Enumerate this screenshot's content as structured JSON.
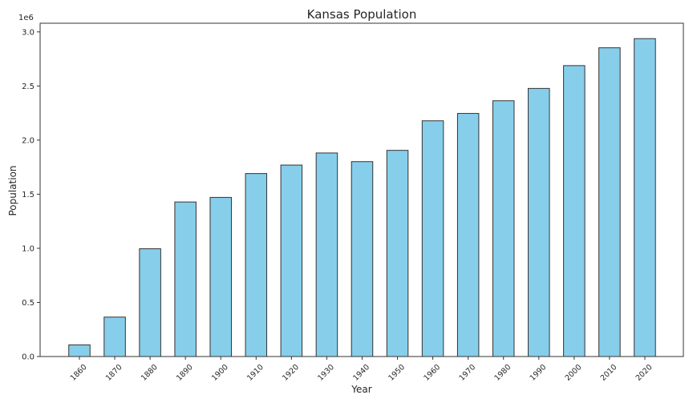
{
  "chart_data": {
    "type": "bar",
    "title": "Kansas Population",
    "xlabel": "Year",
    "ylabel": "Population",
    "offset_label": "1e6",
    "categories": [
      "1860",
      "1870",
      "1880",
      "1890",
      "1900",
      "1910",
      "1920",
      "1930",
      "1940",
      "1950",
      "1960",
      "1970",
      "1980",
      "1990",
      "2000",
      "2010",
      "2020"
    ],
    "values": [
      107206,
      364399,
      996096,
      1428108,
      1470495,
      1690949,
      1769257,
      1880999,
      1801028,
      1905299,
      2178611,
      2246578,
      2363679,
      2477574,
      2688418,
      2853118,
      2937880
    ],
    "ylim": [
      0,
      3080000
    ],
    "yticks": [
      0.0,
      0.5,
      1.0,
      1.5,
      2.0,
      2.5,
      3.0
    ],
    "ytick_labels": [
      "0.0",
      "0.5",
      "1.0",
      "1.5",
      "2.0",
      "2.5",
      "3.0"
    ],
    "ytick_scale": 1000000,
    "grid": false,
    "colors": {
      "bar_fill": "#87CEEB",
      "bar_edge": "#333333",
      "axes": "#333333",
      "text": "#262626"
    }
  }
}
